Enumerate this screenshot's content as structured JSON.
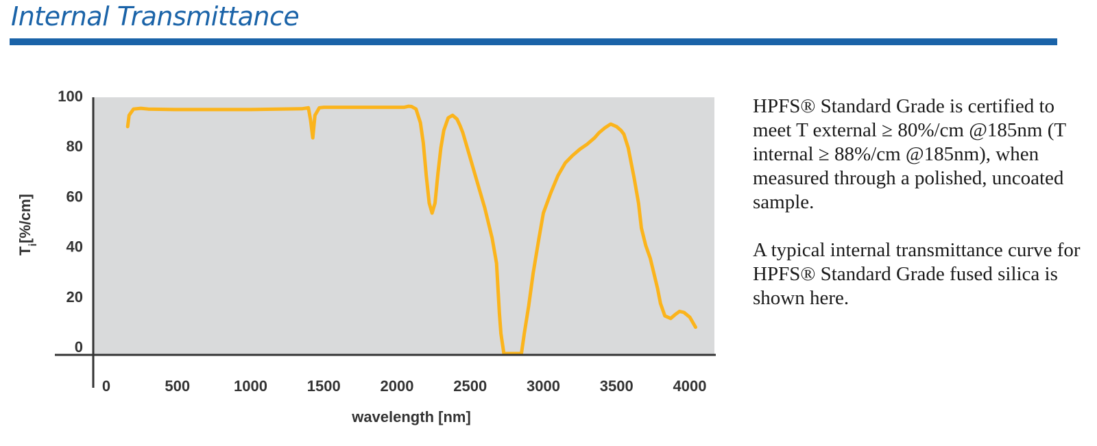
{
  "header": {
    "title": "Internal Transmittance"
  },
  "description": {
    "paragraph1": "HPFS® Standard Grade is certified to meet T external ≥ 80%/cm @185nm (T internal ≥ 88%/cm @185nm), when measured through a polished, uncoated sample.",
    "paragraph2": "A typical internal transmittance curve for HPFS® Standard Grade fused silica is shown here."
  },
  "chart_data": {
    "type": "line",
    "title": "",
    "xlabel": "wavelength [nm]",
    "ylabel": "Ti[%/cm]",
    "xlim": [
      0,
      4100
    ],
    "ylim": [
      0,
      100
    ],
    "xticks": [
      0,
      500,
      1000,
      1500,
      2000,
      2500,
      3000,
      3500,
      4000
    ],
    "yticks": [
      0,
      20,
      40,
      60,
      80,
      100
    ],
    "grid": false,
    "plot_background": "#d9dadb",
    "series": [
      {
        "color": "#fbb41c",
        "x": [
          160,
          170,
          200,
          250,
          300,
          500,
          1000,
          1350,
          1395,
          1410,
          1425,
          1440,
          1470,
          1500,
          1700,
          2000,
          2050,
          2080,
          2100,
          2130,
          2160,
          2180,
          2200,
          2220,
          2240,
          2260,
          2280,
          2300,
          2320,
          2350,
          2380,
          2410,
          2430,
          2450,
          2500,
          2550,
          2600,
          2650,
          2680,
          2700,
          2710,
          2730,
          2850,
          2870,
          2900,
          2930,
          2970,
          3000,
          3050,
          3100,
          3150,
          3200,
          3250,
          3300,
          3350,
          3380,
          3420,
          3460,
          3500,
          3530,
          3550,
          3580,
          3620,
          3650,
          3670,
          3700,
          3730,
          3780,
          3800,
          3830,
          3870,
          3900,
          3930,
          3960,
          4000,
          4040
        ],
        "values": [
          90.5,
          95,
          97.5,
          97.8,
          97.5,
          97.3,
          97.3,
          97.6,
          98.0,
          93,
          86,
          95,
          98.0,
          98.2,
          98.2,
          98.2,
          98.2,
          98.6,
          98.5,
          97.5,
          92,
          84,
          71,
          60,
          56,
          60,
          72,
          82,
          89,
          94,
          95,
          93.5,
          91,
          88,
          78,
          68,
          58,
          46,
          36,
          16,
          8,
          0,
          0,
          8,
          19,
          32,
          46,
          56,
          64,
          71,
          76,
          79,
          81.5,
          83.5,
          86,
          88,
          90,
          91.5,
          90.5,
          89,
          87.5,
          82,
          70,
          60,
          50,
          43,
          38,
          26,
          20,
          15,
          14,
          15.5,
          16.8,
          16.4,
          14.5,
          10.5
        ]
      }
    ]
  }
}
